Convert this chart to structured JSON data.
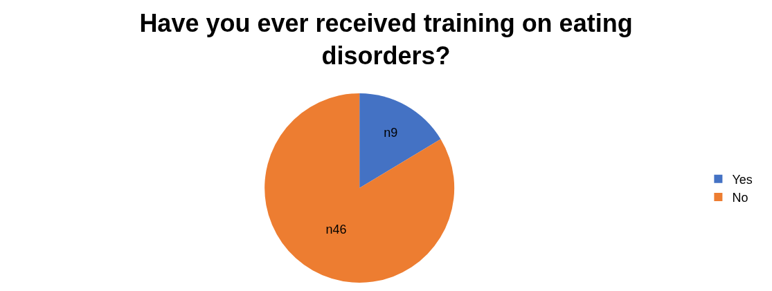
{
  "chart_data": {
    "type": "pie",
    "title": "Have you ever received training on eating disorders?",
    "categories": [
      "Yes",
      "No"
    ],
    "values": [
      9,
      46
    ],
    "value_labels": [
      "n9",
      "n46"
    ],
    "colors": [
      "#4472c4",
      "#ed7d31"
    ],
    "legend": "right"
  }
}
